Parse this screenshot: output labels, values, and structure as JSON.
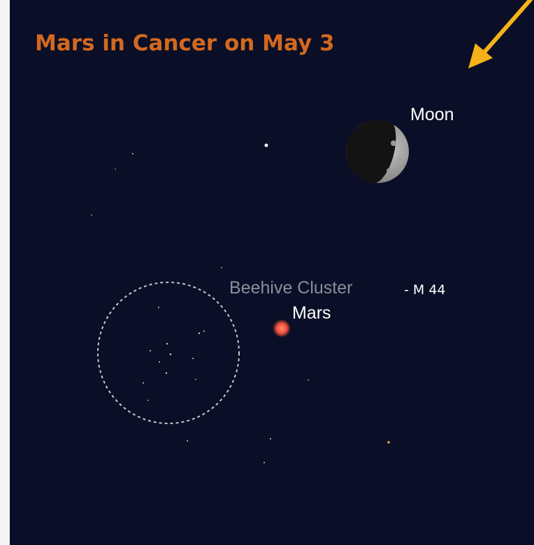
{
  "title": "Mars in Cancer on May 3",
  "labels": {
    "moon": "Moon",
    "cluster": "Beehive Cluster",
    "cluster_id": "- M 44",
    "mars": "Mars"
  }
}
